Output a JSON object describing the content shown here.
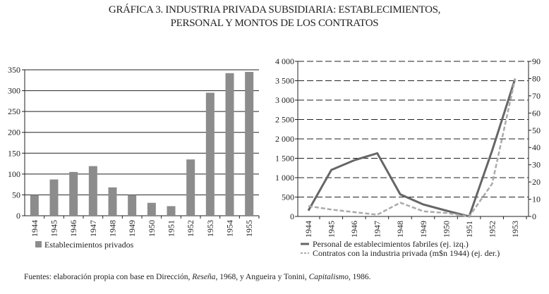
{
  "title_line1": "GRÁFICA 3. INDUSTRIA PRIVADA SUBSIDIARIA: ESTABLECIMIENTOS,",
  "title_line2": "PERSONAL Y MONTOS DE LOS CONTRATOS",
  "source": {
    "prefix": "Fuentes: elaboración propia con base en Dirección, ",
    "italic1": "Reseña",
    "middle": ", 1968, y Angueira y Tonini, ",
    "italic2": "Capitalismo",
    "suffix": ", 1986."
  },
  "chart_data": [
    {
      "type": "bar",
      "categories": [
        "1944",
        "1945",
        "1946",
        "1947",
        "1948",
        "1949",
        "1950",
        "1951",
        "1952",
        "1953",
        "1954",
        "1955"
      ],
      "series": [
        {
          "name": "Establecimientos privados",
          "values": [
            50,
            87,
            105,
            119,
            68,
            50,
            31,
            23,
            135,
            295,
            342,
            345
          ],
          "color": "#8c8c8c"
        }
      ],
      "ylim": [
        0,
        350
      ],
      "yticks": [
        0,
        50,
        100,
        150,
        200,
        250,
        300,
        350
      ],
      "ytick_labels": [
        "0",
        "50",
        "100",
        "150",
        "200",
        "250",
        "300",
        "350"
      ],
      "grid": true,
      "legend": "bottom-left"
    },
    {
      "type": "line",
      "categories": [
        "1944",
        "1945",
        "1946",
        "1947",
        "1948",
        "1949",
        "1950",
        "1951",
        "1952",
        "1953"
      ],
      "series": [
        {
          "name": "Personal de establecimientos fabriles (ej. izq.)",
          "axis": "left",
          "values": [
            150,
            1200,
            1450,
            1630,
            570,
            310,
            150,
            0,
            1700,
            3550
          ],
          "color": "#666666",
          "style": "solid"
        },
        {
          "name": "Contratos con la industria privada (m$n 1944) (ej. der.)",
          "axis": "right",
          "values": [
            6,
            4,
            2.5,
            1,
            8,
            3,
            2,
            0,
            19,
            80
          ],
          "color": "#aaaaaa",
          "style": "dashed"
        }
      ],
      "ylim_left": [
        0,
        4000
      ],
      "yticks_left": [
        0,
        500,
        1000,
        1500,
        2000,
        2500,
        3000,
        3500,
        4000
      ],
      "ytick_labels_left": [
        "0",
        "500",
        "1 000",
        "1 500",
        "2 000",
        "2 500",
        "3 000",
        "3 500",
        "4 000"
      ],
      "ylim_right": [
        0,
        90
      ],
      "yticks_right": [
        0,
        10,
        20,
        30,
        40,
        50,
        60,
        70,
        80,
        90
      ],
      "ytick_labels_right": [
        "0",
        "10",
        "20",
        "30",
        "40",
        "50",
        "60",
        "70",
        "80",
        "90"
      ],
      "grid": "dashed",
      "legend": "bottom"
    }
  ]
}
